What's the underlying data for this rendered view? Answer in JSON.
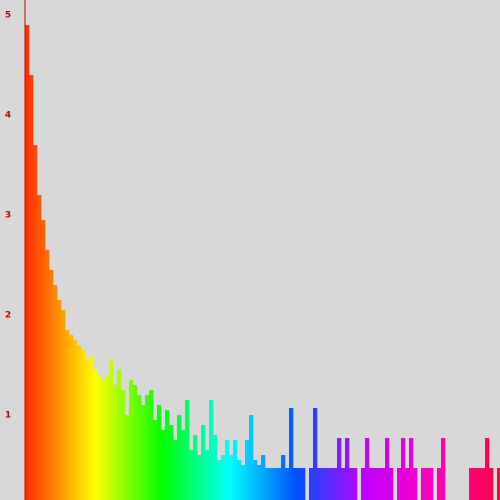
{
  "chart_data": {
    "type": "bar",
    "values": [
      4.9,
      4.4,
      3.7,
      3.2,
      2.95,
      2.65,
      2.45,
      2.3,
      2.15,
      2.05,
      1.85,
      1.8,
      1.75,
      1.7,
      1.65,
      1.55,
      1.6,
      1.45,
      1.4,
      1.35,
      1.4,
      1.55,
      1.3,
      1.45,
      1.25,
      1.0,
      1.35,
      1.3,
      1.2,
      1.1,
      1.2,
      1.25,
      0.95,
      1.1,
      0.85,
      1.05,
      0.9,
      0.75,
      1.0,
      0.85,
      1.15,
      0.65,
      0.8,
      0.6,
      0.9,
      0.65,
      1.15,
      0.8,
      0.55,
      0.6,
      0.75,
      0.6,
      0.75,
      0.55,
      0.5,
      0.75,
      1.0,
      0.55,
      0.5,
      0.6,
      0.47,
      0.47,
      0.47,
      0.47,
      0.6,
      0.47,
      1.07,
      0.47,
      0.47,
      0.47,
      0,
      0.47,
      1.07,
      0.47,
      0.47,
      0.47,
      0.47,
      0.47,
      0.77,
      0.47,
      0.77,
      0.47,
      0.47,
      0,
      0.47,
      0.77,
      0.47,
      0.47,
      0.47,
      0.47,
      0.77,
      0.47,
      0,
      0.47,
      0.77,
      0.47,
      0.77,
      0.47,
      0,
      0.47,
      0.47,
      0.47,
      0,
      0.47,
      0.77,
      0,
      0,
      0,
      0,
      0,
      0,
      0.47,
      0.47,
      0.47,
      0.47,
      0.77,
      0.47,
      0,
      0.47
    ],
    "color_stops": [
      "#ff3000",
      "#ffff00",
      "#00ff00",
      "#00ffff",
      "#0050ff",
      "#c000ff",
      "#ff00c0",
      "#ff0040"
    ],
    "axis_color": "#cc0000",
    "ylim": [
      0.15,
      5.15
    ],
    "yticks": [
      1,
      2,
      3,
      4,
      5
    ],
    "grid": false
  }
}
